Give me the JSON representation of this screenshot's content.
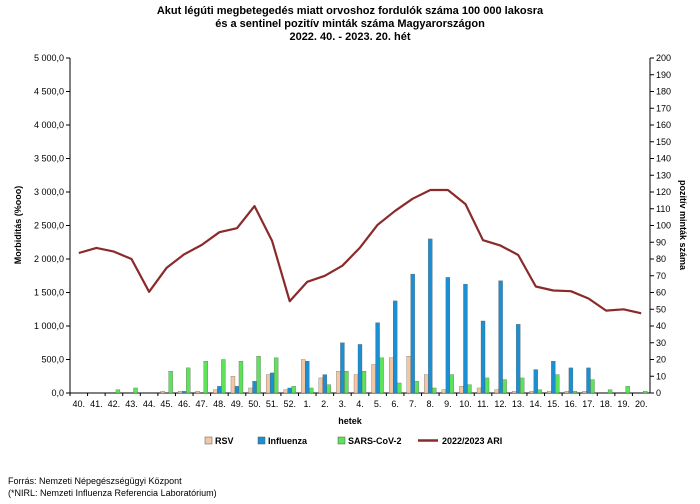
{
  "chart_data": {
    "type": "bar",
    "title": [
      "Akut légúti megbetegedés miatt orvoshoz fordulók száma 100 000 lakosra",
      "és a sentinel pozitív minták száma Magyarországon",
      "2022. 40. - 2023. 20. hét"
    ],
    "xlabel": "hetek",
    "ylabel": "Morbiditás (%ooo)",
    "y2label": "pozitív minták száma",
    "ylim": [
      0,
      5000
    ],
    "y2lim": [
      0,
      200
    ],
    "yticks": [
      0,
      500,
      1000,
      1500,
      2000,
      2500,
      3000,
      3500,
      4000,
      4500,
      5000
    ],
    "yticklabels": [
      "0,0",
      "500,0",
      "1 000,0",
      "1 500,0",
      "2 000,0",
      "2 500,0",
      "3 000,0",
      "3 500,0",
      "4 000,0",
      "4 500,0",
      "5 000,0"
    ],
    "y2ticks": [
      0,
      10,
      20,
      30,
      40,
      50,
      60,
      70,
      80,
      90,
      100,
      110,
      120,
      130,
      140,
      150,
      160,
      170,
      180,
      190,
      200
    ],
    "categories": [
      "40.",
      "41.",
      "42.",
      "43.",
      "44.",
      "45.",
      "46.",
      "47.",
      "48.",
      "49.",
      "50.",
      "51.",
      "52.",
      "1.",
      "2.",
      "3.",
      "4.",
      "5.",
      "6.",
      "7.",
      "8.",
      "9.",
      "10.",
      "11.",
      "12.",
      "13.",
      "14.",
      "15.",
      "16.",
      "17.",
      "18.",
      "19.",
      "20."
    ],
    "series": [
      {
        "name": "RSV",
        "axis": "secondary",
        "kind": "bar",
        "color": "#f4c7a4",
        "values": [
          0,
          0,
          0,
          0,
          0,
          1,
          1,
          1,
          2,
          10,
          3,
          11,
          2,
          20,
          9,
          13,
          11,
          17,
          21,
          22,
          11,
          2,
          4,
          3,
          2,
          1,
          1,
          1,
          1,
          1,
          0,
          0,
          0
        ]
      },
      {
        "name": "Influenza",
        "axis": "secondary",
        "kind": "bar",
        "color": "#1b8fd2",
        "values": [
          0,
          0,
          0,
          0,
          0,
          0,
          1,
          0,
          4,
          4,
          7,
          12,
          3,
          19,
          11,
          30,
          29,
          42,
          55,
          71,
          92,
          69,
          65,
          43,
          67,
          41,
          14,
          19,
          15,
          15,
          0,
          0,
          0
        ]
      },
      {
        "name": "SARS-CoV-2",
        "axis": "secondary",
        "kind": "bar",
        "color": "#5ee25a",
        "values": [
          0,
          0,
          2,
          3,
          0,
          13,
          15,
          19,
          20,
          19,
          22,
          21,
          4,
          3,
          5,
          13,
          13,
          21,
          6,
          7,
          3,
          11,
          5,
          9,
          8,
          9,
          2,
          11,
          1,
          8,
          2,
          4,
          1
        ]
      },
      {
        "name": "2022/2023 ARI",
        "axis": "primary",
        "kind": "line",
        "color": "#8b2a2a",
        "values": [
          2090,
          2165,
          2110,
          2000,
          1510,
          1870,
          2070,
          2210,
          2400,
          2460,
          2790,
          2270,
          1370,
          1660,
          1750,
          1900,
          2170,
          2510,
          2720,
          2900,
          3030,
          3030,
          2820,
          2280,
          2200,
          2060,
          1590,
          1530,
          1520,
          1410,
          1230,
          1250,
          1190
        ]
      }
    ],
    "legend_position": "bottom",
    "grid": false
  },
  "footer": {
    "source": "Forrás: Nemzeti Népegészségügyi Központ",
    "note": "(*NIRL: Nemzeti Influenza Referencia Laboratórium)"
  }
}
